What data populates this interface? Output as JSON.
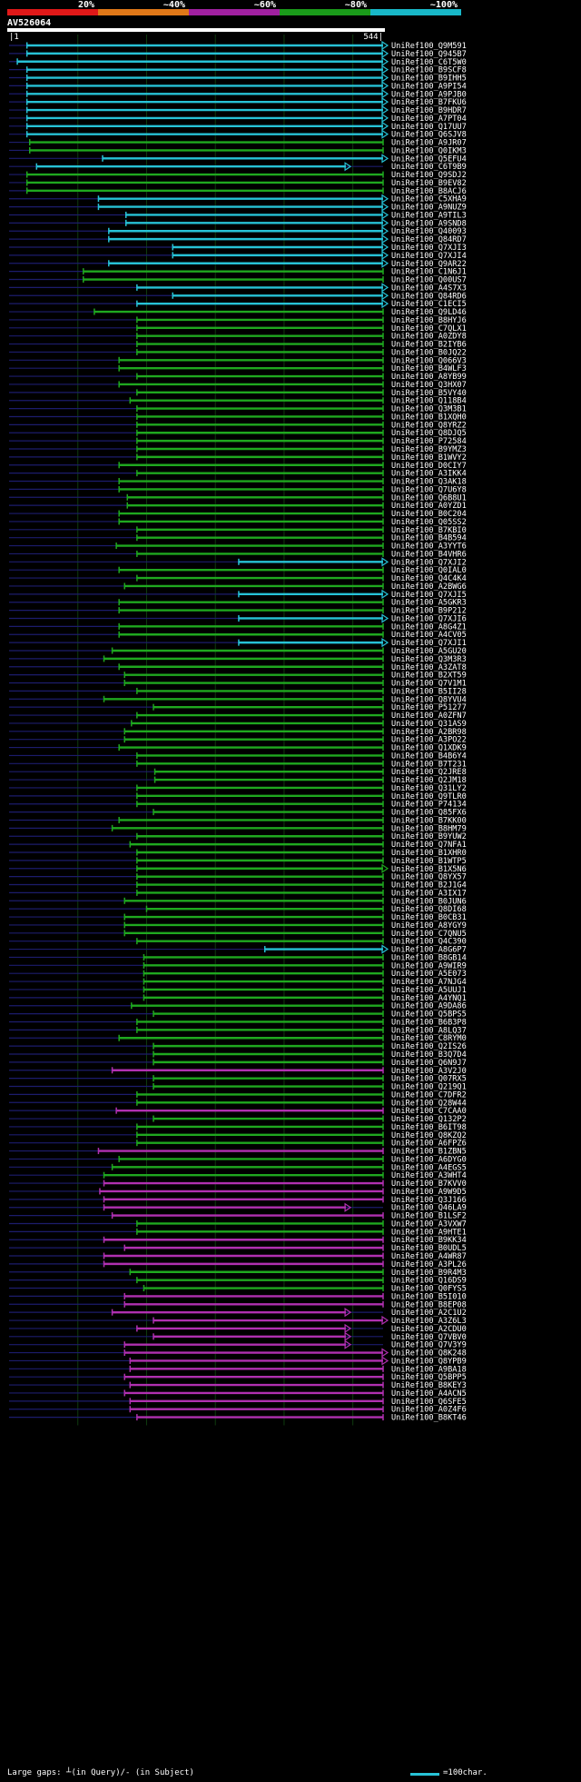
{
  "chart_data": {
    "type": "alignment-overview",
    "query_id": "AV526064",
    "query_start": "1",
    "query_end": "544",
    "identity_scale": [
      {
        "label": "20%",
        "color": "#e01818"
      },
      {
        "label": "~40%",
        "color": "#e07818"
      },
      {
        "label": "~60%",
        "color": "#a020a0"
      },
      {
        "label": "~80%",
        "color": "#1a9a1a"
      },
      {
        "label": "~100%",
        "color": "#18b8c8"
      }
    ],
    "colors": {
      "cyan": "#27c2d6",
      "green": "#1fa81f",
      "magenta": "#b030b0",
      "queryline": "#1c1c6c",
      "grid": "#0f3b0f"
    },
    "footer": "Large gaps: ┴(in Query)/- (in Subject)",
    "legend_label": "=100char.",
    "hits": [
      [
        "UniRef100_Q9M591",
        "cyan",
        26,
        544,
        1
      ],
      [
        "UniRef100_Q945B7",
        "cyan",
        26,
        544,
        1
      ],
      [
        "UniRef100_C6T5W0",
        "cyan",
        12,
        544,
        1
      ],
      [
        "UniRef100_B9SCF8",
        "cyan",
        26,
        544,
        1
      ],
      [
        "UniRef100_B9IHH5",
        "cyan",
        26,
        544,
        1
      ],
      [
        "UniRef100_A9PI54",
        "cyan",
        26,
        544,
        1
      ],
      [
        "UniRef100_A9PJB0",
        "cyan",
        26,
        544,
        1
      ],
      [
        "UniRef100_B7FKU6",
        "cyan",
        26,
        544,
        1
      ],
      [
        "UniRef100_B9HDR7",
        "cyan",
        26,
        544,
        1
      ],
      [
        "UniRef100_A7PT04",
        "cyan",
        26,
        544,
        1
      ],
      [
        "UniRef100_Q17UU7",
        "cyan",
        26,
        544,
        1
      ],
      [
        "UniRef100_Q6SJV8",
        "cyan",
        26,
        544,
        1
      ],
      [
        "UniRef100_A9JR07",
        "green",
        30,
        544,
        0
      ],
      [
        "UniRef100_Q0IKM3",
        "green",
        30,
        544,
        0
      ],
      [
        "UniRef100_Q5EFU4",
        "cyan",
        136,
        544,
        1
      ],
      [
        "UniRef100_C6T9B9",
        "cyan",
        40,
        490,
        1
      ],
      [
        "UniRef100_Q9SDJ2",
        "green",
        26,
        544,
        0
      ],
      [
        "UniRef100_B9EV82",
        "green",
        26,
        544,
        0
      ],
      [
        "UniRef100_B8ACJ6",
        "green",
        26,
        544,
        0
      ],
      [
        "UniRef100_C5XHA9",
        "cyan",
        130,
        544,
        1
      ],
      [
        "UniRef100_A9NUZ9",
        "cyan",
        130,
        544,
        1
      ],
      [
        "UniRef100_A9TIL3",
        "cyan",
        170,
        544,
        1
      ],
      [
        "UniRef100_A9SND8",
        "cyan",
        170,
        544,
        1
      ],
      [
        "UniRef100_Q40093",
        "cyan",
        145,
        544,
        1
      ],
      [
        "UniRef100_Q84RD7",
        "cyan",
        145,
        544,
        1
      ],
      [
        "UniRef100_Q7XJI3",
        "cyan",
        238,
        544,
        1
      ],
      [
        "UniRef100_Q7XJI4",
        "cyan",
        238,
        544,
        1
      ],
      [
        "UniRef100_Q9AR22",
        "cyan",
        145,
        544,
        1
      ],
      [
        "UniRef100_C1N6J1",
        "green",
        108,
        544,
        0
      ],
      [
        "UniRef100_Q00US7",
        "green",
        108,
        544,
        0
      ],
      [
        "UniRef100_A4S7X3",
        "cyan",
        186,
        544,
        1
      ],
      [
        "UniRef100_Q84RD6",
        "cyan",
        238,
        544,
        1
      ],
      [
        "UniRef100_C1ECI5",
        "cyan",
        186,
        544,
        1
      ],
      [
        "UniRef100_Q9LD46",
        "green",
        124,
        544,
        0
      ],
      [
        "UniRef100_B8HYJ6",
        "green",
        186,
        544,
        0
      ],
      [
        "UniRef100_C7QLX1",
        "green",
        186,
        544,
        0
      ],
      [
        "UniRef100_A0ZDY8",
        "green",
        186,
        544,
        0
      ],
      [
        "UniRef100_B2IYB6",
        "green",
        186,
        544,
        0
      ],
      [
        "UniRef100_B0JQ22",
        "green",
        186,
        544,
        0
      ],
      [
        "UniRef100_Q066V3",
        "green",
        160,
        544,
        0
      ],
      [
        "UniRef100_B4WLF3",
        "green",
        160,
        544,
        0
      ],
      [
        "UniRef100_A8YB99",
        "green",
        186,
        544,
        0
      ],
      [
        "UniRef100_Q3HX07",
        "green",
        160,
        544,
        0
      ],
      [
        "UniRef100_B5VY40",
        "green",
        186,
        544,
        0
      ],
      [
        "UniRef100_Q118B4",
        "green",
        176,
        544,
        0
      ],
      [
        "UniRef100_Q3M3B1",
        "green",
        186,
        544,
        0
      ],
      [
        "UniRef100_B1XQH0",
        "green",
        186,
        544,
        0
      ],
      [
        "UniRef100_Q8YRZ2",
        "green",
        186,
        544,
        0
      ],
      [
        "UniRef100_Q8DJQ5",
        "green",
        186,
        544,
        0
      ],
      [
        "UniRef100_P72584",
        "green",
        186,
        544,
        0
      ],
      [
        "UniRef100_B9YMZ3",
        "green",
        186,
        544,
        0
      ],
      [
        "UniRef100_B1WVY2",
        "green",
        186,
        544,
        0
      ],
      [
        "UniRef100_D0CIY7",
        "green",
        160,
        544,
        0
      ],
      [
        "UniRef100_A3IKK4",
        "green",
        186,
        544,
        0
      ],
      [
        "UniRef100_Q3AK18",
        "green",
        160,
        544,
        0
      ],
      [
        "UniRef100_Q7U6Y8",
        "green",
        160,
        544,
        0
      ],
      [
        "UniRef100_Q6B8U1",
        "green",
        172,
        544,
        0
      ],
      [
        "UniRef100_A0YZD1",
        "green",
        172,
        544,
        0
      ],
      [
        "UniRef100_B0C204",
        "green",
        160,
        544,
        0
      ],
      [
        "UniRef100_Q05SS2",
        "green",
        160,
        544,
        0
      ],
      [
        "UniRef100_B7KBI0",
        "green",
        186,
        544,
        0
      ],
      [
        "UniRef100_B4B594",
        "green",
        186,
        544,
        0
      ],
      [
        "UniRef100_A3YYT6",
        "green",
        156,
        544,
        0
      ],
      [
        "UniRef100_B4VHR6",
        "green",
        186,
        544,
        0
      ],
      [
        "UniRef100_Q7XJI2",
        "cyan",
        334,
        544,
        1
      ],
      [
        "UniRef100_Q0IAL0",
        "green",
        160,
        544,
        0
      ],
      [
        "UniRef100_Q4C4K4",
        "green",
        186,
        544,
        0
      ],
      [
        "UniRef100_A2BWG6",
        "green",
        168,
        544,
        0
      ],
      [
        "UniRef100_Q7XJI5",
        "cyan",
        334,
        544,
        1
      ],
      [
        "UniRef100_A5GKR3",
        "green",
        160,
        544,
        0
      ],
      [
        "UniRef100_B9P212",
        "green",
        160,
        544,
        0
      ],
      [
        "UniRef100_Q7XJI6",
        "cyan",
        334,
        544,
        1
      ],
      [
        "UniRef100_A8G4Z1",
        "green",
        160,
        544,
        0
      ],
      [
        "UniRef100_A4CV05",
        "green",
        160,
        544,
        0
      ],
      [
        "UniRef100_Q7XJI1",
        "cyan",
        334,
        544,
        1
      ],
      [
        "UniRef100_A5GU20",
        "green",
        150,
        544,
        0
      ],
      [
        "UniRef100_Q3M3R3",
        "green",
        138,
        544,
        0
      ],
      [
        "UniRef100_A3ZAT8",
        "green",
        160,
        544,
        0
      ],
      [
        "UniRef100_B2XT59",
        "green",
        168,
        544,
        0
      ],
      [
        "UniRef100_Q7V1M1",
        "green",
        168,
        544,
        0
      ],
      [
        "UniRef100_B5II28",
        "green",
        186,
        544,
        0
      ],
      [
        "UniRef100_Q8YVU4",
        "green",
        138,
        544,
        0
      ],
      [
        "UniRef100_P51277",
        "green",
        210,
        544,
        0
      ],
      [
        "UniRef100_A0ZFN7",
        "green",
        186,
        544,
        0
      ],
      [
        "UniRef100_Q31AS9",
        "green",
        178,
        544,
        0
      ],
      [
        "UniRef100_A2BR98",
        "green",
        168,
        544,
        0
      ],
      [
        "UniRef100_A3PO22",
        "green",
        168,
        544,
        0
      ],
      [
        "UniRef100_Q1XDK9",
        "green",
        160,
        544,
        0
      ],
      [
        "UniRef100_B4B6Y4",
        "green",
        186,
        544,
        0
      ],
      [
        "UniRef100_B7T231",
        "green",
        186,
        544,
        0
      ],
      [
        "UniRef100_Q2JRE8",
        "green",
        212,
        544,
        0
      ],
      [
        "UniRef100_Q2JM18",
        "green",
        212,
        544,
        0
      ],
      [
        "UniRef100_Q31LY2",
        "green",
        186,
        544,
        0
      ],
      [
        "UniRef100_Q9TLR0",
        "green",
        186,
        544,
        0
      ],
      [
        "UniRef100_P74134",
        "green",
        186,
        544,
        0
      ],
      [
        "UniRef100_Q85FX6",
        "green",
        210,
        544,
        0
      ],
      [
        "UniRef100_B7KK00",
        "green",
        160,
        544,
        0
      ],
      [
        "UniRef100_B8HM79",
        "green",
        150,
        544,
        0
      ],
      [
        "UniRef100_B9YUW2",
        "green",
        186,
        544,
        0
      ],
      [
        "UniRef100_Q7NFA1",
        "green",
        176,
        544,
        0
      ],
      [
        "UniRef100_B1XHR0",
        "green",
        186,
        544,
        0
      ],
      [
        "UniRef100_B1WTP5",
        "green",
        186,
        544,
        0
      ],
      [
        "UniRef100_B1X5N6",
        "green",
        186,
        544,
        1
      ],
      [
        "UniRef100_Q8YX57",
        "green",
        186,
        544,
        0
      ],
      [
        "UniRef100_B2J1G4",
        "green",
        186,
        544,
        0
      ],
      [
        "UniRef100_A3IX17",
        "green",
        186,
        544,
        0
      ],
      [
        "UniRef100_B0JUN6",
        "green",
        168,
        544,
        0
      ],
      [
        "UniRef100_Q8DI68",
        "green",
        200,
        544,
        0
      ],
      [
        "UniRef100_B0CB31",
        "green",
        168,
        544,
        0
      ],
      [
        "UniRef100_A8YGY9",
        "green",
        168,
        544,
        0
      ],
      [
        "UniRef100_C7QNU5",
        "green",
        168,
        544,
        0
      ],
      [
        "UniRef100_Q4C390",
        "green",
        186,
        544,
        0
      ],
      [
        "UniRef100_A8G6P7",
        "cyan",
        372,
        544,
        1
      ],
      [
        "UniRef100_B8GB14",
        "green",
        196,
        544,
        0
      ],
      [
        "UniRef100_A9WIR9",
        "green",
        196,
        544,
        0
      ],
      [
        "UniRef100_A5E073",
        "green",
        196,
        544,
        0
      ],
      [
        "UniRef100_A7NJG4",
        "green",
        196,
        544,
        0
      ],
      [
        "UniRef100_A5UUJ1",
        "green",
        196,
        544,
        0
      ],
      [
        "UniRef100_A4YNQ1",
        "green",
        196,
        544,
        0
      ],
      [
        "UniRef100_A9DA86",
        "green",
        178,
        544,
        0
      ],
      [
        "UniRef100_Q5BPS5",
        "green",
        210,
        544,
        0
      ],
      [
        "UniRef100_B6B3P8",
        "green",
        186,
        544,
        0
      ],
      [
        "UniRef100_A8LQ37",
        "green",
        186,
        544,
        0
      ],
      [
        "UniRef100_C8RYM0",
        "green",
        160,
        544,
        0
      ],
      [
        "UniRef100_Q2IS26",
        "green",
        210,
        544,
        0
      ],
      [
        "UniRef100_B3Q7D4",
        "green",
        210,
        544,
        0
      ],
      [
        "UniRef100_Q6N9J7",
        "green",
        210,
        544,
        0
      ],
      [
        "UniRef100_A3V2J0",
        "magenta",
        150,
        544,
        0
      ],
      [
        "UniRef100_Q07RX5",
        "green",
        210,
        544,
        0
      ],
      [
        "UniRef100_Q219Q1",
        "green",
        210,
        544,
        0
      ],
      [
        "UniRef100_C7DFR2",
        "green",
        186,
        544,
        0
      ],
      [
        "UniRef100_Q28W44",
        "green",
        186,
        544,
        0
      ],
      [
        "UniRef100_C7CAA0",
        "magenta",
        156,
        544,
        0
      ],
      [
        "UniRef100_Q132P2",
        "green",
        210,
        544,
        0
      ],
      [
        "UniRef100_B6IT98",
        "green",
        186,
        544,
        0
      ],
      [
        "UniRef100_Q8KZQ2",
        "green",
        186,
        544,
        0
      ],
      [
        "UniRef100_A6FPZ6",
        "green",
        186,
        544,
        0
      ],
      [
        "UniRef100_B1ZBN5",
        "magenta",
        130,
        544,
        0
      ],
      [
        "UniRef100_A6DYG0",
        "green",
        160,
        544,
        0
      ],
      [
        "UniRef100_A4EGS5",
        "green",
        150,
        544,
        0
      ],
      [
        "UniRef100_A3WHT4",
        "green",
        138,
        544,
        0
      ],
      [
        "UniRef100_B7KVV0",
        "magenta",
        138,
        544,
        0
      ],
      [
        "UniRef100_A9W9D5",
        "magenta",
        132,
        544,
        0
      ],
      [
        "UniRef100_Q3J166",
        "magenta",
        138,
        544,
        0
      ],
      [
        "UniRef100_Q46LA9",
        "magenta",
        138,
        490,
        1
      ],
      [
        "UniRef100_B1LSF2",
        "magenta",
        150,
        544,
        0
      ],
      [
        "UniRef100_A3VXW7",
        "green",
        186,
        544,
        0
      ],
      [
        "UniRef100_A9HTE1",
        "green",
        186,
        544,
        0
      ],
      [
        "UniRef100_B9KK34",
        "magenta",
        138,
        544,
        0
      ],
      [
        "UniRef100_B0UDL5",
        "magenta",
        168,
        544,
        0
      ],
      [
        "UniRef100_A4WR87",
        "magenta",
        138,
        544,
        0
      ],
      [
        "UniRef100_A3PL26",
        "magenta",
        138,
        544,
        0
      ],
      [
        "UniRef100_B9R4M3",
        "green",
        176,
        544,
        0
      ],
      [
        "UniRef100_Q16DS9",
        "green",
        186,
        544,
        0
      ],
      [
        "UniRef100_Q0FYS5",
        "green",
        196,
        544,
        0
      ],
      [
        "UniRef100_B5I010",
        "magenta",
        168,
        544,
        0
      ],
      [
        "UniRef100_B8EP08",
        "magenta",
        168,
        544,
        0
      ],
      [
        "UniRef100_A2C1U2",
        "magenta",
        150,
        490,
        1
      ],
      [
        "UniRef100_A3Z6L3",
        "magenta",
        210,
        544,
        1
      ],
      [
        "UniRef100_A2CDU0",
        "magenta",
        186,
        490,
        1
      ],
      [
        "UniRef100_Q7VBV0",
        "magenta",
        210,
        490,
        1
      ],
      [
        "UniRef100_Q7V3Y9",
        "magenta",
        168,
        490,
        1
      ],
      [
        "UniRef100_Q8K248",
        "magenta",
        168,
        544,
        1
      ],
      [
        "UniRef100_Q8YPB9",
        "magenta",
        176,
        544,
        1
      ],
      [
        "UniRef100_A9BA18",
        "magenta",
        176,
        544,
        0
      ],
      [
        "UniRef100_Q5BPP5",
        "magenta",
        168,
        544,
        0
      ],
      [
        "UniRef100_B8KEY3",
        "magenta",
        176,
        544,
        0
      ],
      [
        "UniRef100_A4ACN5",
        "magenta",
        168,
        544,
        0
      ],
      [
        "UniRef100_Q6SFE5",
        "magenta",
        176,
        544,
        0
      ],
      [
        "UniRef100_A0Z4F6",
        "magenta",
        176,
        544,
        0
      ],
      [
        "UniRef100_B8KT46",
        "magenta",
        186,
        544,
        0
      ]
    ]
  }
}
